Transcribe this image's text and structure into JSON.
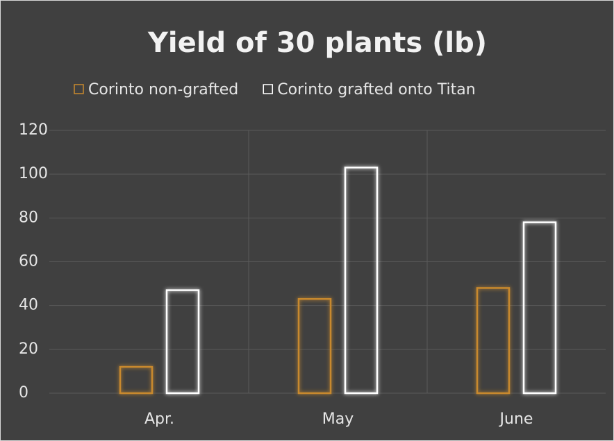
{
  "chart_data": {
    "type": "bar",
    "title": "Yield of 30 plants (lb)",
    "categories": [
      "Apr.",
      "May",
      "June"
    ],
    "series": [
      {
        "name": "Corinto non-grafted",
        "color": "#c8892e",
        "values": [
          12,
          43,
          48
        ]
      },
      {
        "name": "Corinto grafted onto Titan",
        "color": "#ffffff",
        "values": [
          47,
          103,
          78
        ]
      }
    ],
    "ylim": [
      0,
      120
    ],
    "yticks": [
      0,
      20,
      40,
      60,
      80,
      100,
      120
    ],
    "grid": true
  }
}
